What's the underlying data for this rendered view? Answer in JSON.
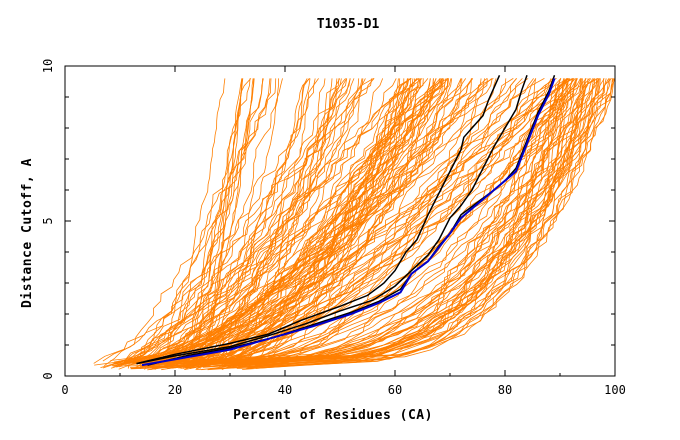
{
  "chart_data": {
    "type": "line",
    "title": "T1035-D1",
    "xlabel": "Percent of Residues (CA)",
    "ylabel": "Distance Cutoff, A",
    "xlim": [
      0,
      100
    ],
    "ylim": [
      0,
      10
    ],
    "x_ticks": [
      0,
      20,
      40,
      60,
      80,
      100
    ],
    "y_ticks": [
      0,
      5,
      10
    ],
    "y_tick_labels": [
      "0",
      "5",
      "10"
    ],
    "x_tick_labels": [
      "0",
      "20",
      "40",
      "60",
      "80",
      "100"
    ],
    "grid": false,
    "colors": {
      "background_curves": "#ff7f00",
      "highlight_black": "#000000",
      "highlight_blue": "#0000cc",
      "axes": "#000000"
    },
    "highlight_series": [
      {
        "color": "black",
        "points": [
          [
            13,
            0.4
          ],
          [
            20,
            0.7
          ],
          [
            30,
            1.05
          ],
          [
            37,
            1.35
          ],
          [
            43,
            1.8
          ],
          [
            50,
            2.25
          ],
          [
            55,
            2.6
          ],
          [
            58,
            3.0
          ],
          [
            60,
            3.4
          ],
          [
            62,
            4.0
          ],
          [
            64,
            4.4
          ],
          [
            66,
            5.2
          ],
          [
            68,
            5.9
          ],
          [
            70,
            6.6
          ],
          [
            72,
            7.3
          ],
          [
            72.5,
            7.7
          ],
          [
            74,
            8.0
          ],
          [
            76,
            8.4
          ],
          [
            77,
            8.9
          ],
          [
            78,
            9.3
          ],
          [
            79,
            9.7
          ]
        ]
      },
      {
        "color": "black",
        "points": [
          [
            13,
            0.4
          ],
          [
            20,
            0.65
          ],
          [
            30,
            0.95
          ],
          [
            37,
            1.3
          ],
          [
            44,
            1.7
          ],
          [
            50,
            2.1
          ],
          [
            56,
            2.45
          ],
          [
            60,
            2.9
          ],
          [
            63,
            3.4
          ],
          [
            66,
            3.9
          ],
          [
            68,
            4.4
          ],
          [
            70,
            5.1
          ],
          [
            72,
            5.5
          ],
          [
            74,
            6.0
          ],
          [
            76,
            6.7
          ],
          [
            78,
            7.4
          ],
          [
            80,
            8.0
          ],
          [
            82,
            8.6
          ],
          [
            83,
            9.2
          ],
          [
            84,
            9.7
          ]
        ]
      },
      {
        "color": "black",
        "points": [
          [
            15,
            0.35
          ],
          [
            22,
            0.65
          ],
          [
            30,
            0.9
          ],
          [
            38,
            1.25
          ],
          [
            45,
            1.65
          ],
          [
            52,
            2.05
          ],
          [
            57,
            2.4
          ],
          [
            61,
            2.8
          ],
          [
            63,
            3.3
          ],
          [
            66,
            3.7
          ],
          [
            68,
            4.2
          ],
          [
            70,
            4.6
          ],
          [
            72,
            5.2
          ],
          [
            75,
            5.6
          ],
          [
            78,
            6.0
          ],
          [
            80,
            6.3
          ],
          [
            82,
            6.7
          ],
          [
            84,
            7.6
          ],
          [
            86,
            8.5
          ],
          [
            88,
            9.2
          ],
          [
            89,
            9.7
          ]
        ]
      },
      {
        "color": "blue",
        "points": [
          [
            14,
            0.35
          ],
          [
            22,
            0.6
          ],
          [
            30,
            0.85
          ],
          [
            38,
            1.25
          ],
          [
            45,
            1.6
          ],
          [
            52,
            2.0
          ],
          [
            57,
            2.35
          ],
          [
            61,
            2.7
          ],
          [
            63,
            3.3
          ],
          [
            66,
            3.7
          ],
          [
            68,
            4.15
          ],
          [
            70,
            4.6
          ],
          [
            72,
            5.1
          ],
          [
            75,
            5.55
          ],
          [
            78,
            6.0
          ],
          [
            80,
            6.3
          ],
          [
            82,
            6.6
          ],
          [
            84,
            7.5
          ],
          [
            86,
            8.4
          ],
          [
            88,
            9.1
          ],
          [
            89,
            9.6
          ]
        ]
      }
    ],
    "background_series_count": 180
  }
}
